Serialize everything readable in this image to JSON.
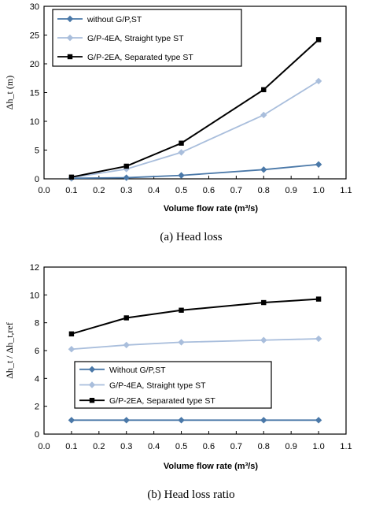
{
  "colors": {
    "without": "#4a78a8",
    "straight": "#a9bedc",
    "separated": "#000000"
  },
  "chart_data": [
    {
      "type": "line",
      "caption": "(a)  Head  loss",
      "xlabel": "Volume flow rate (m³/s)",
      "ylabel": "Δh_t (m)",
      "xlim": [
        0.0,
        1.1
      ],
      "ylim": [
        0,
        30
      ],
      "x_ticks": [
        "0.0",
        "0.1",
        "0.2",
        "0.3",
        "0.4",
        "0.5",
        "0.6",
        "0.7",
        "0.8",
        "0.9",
        "1.0",
        "1.1"
      ],
      "y_ticks": [
        "0",
        "5",
        "10",
        "15",
        "20",
        "25",
        "30"
      ],
      "x": [
        0.1,
        0.3,
        0.5,
        0.8,
        1.0
      ],
      "legend": "top-left",
      "series": [
        {
          "name": "without G/P,ST",
          "marker": "diamond",
          "values": [
            0.1,
            0.2,
            0.6,
            1.6,
            2.5
          ]
        },
        {
          "name": "G/P-4EA, Straight type ST",
          "marker": "diamond",
          "values": [
            0.2,
            1.7,
            4.6,
            11.1,
            17.0
          ]
        },
        {
          "name": "G/P-2EA, Separated type ST",
          "marker": "square",
          "values": [
            0.3,
            2.2,
            6.2,
            15.5,
            24.2
          ]
        }
      ]
    },
    {
      "type": "line",
      "caption": "(b)  Head  loss  ratio",
      "xlabel": "Volume flow rate (m³/s)",
      "ylabel": "Δh_t / Δh_t,ref",
      "xlim": [
        0.0,
        1.1
      ],
      "ylim": [
        0,
        12
      ],
      "x_ticks": [
        "0.0",
        "0.1",
        "0.2",
        "0.3",
        "0.4",
        "0.5",
        "0.6",
        "0.7",
        "0.8",
        "0.9",
        "1.0",
        "1.1"
      ],
      "y_ticks": [
        "0",
        "2",
        "4",
        "6",
        "8",
        "10",
        "12"
      ],
      "x": [
        0.1,
        0.3,
        0.5,
        0.8,
        1.0
      ],
      "legend": "bottom-left",
      "series": [
        {
          "name": "Without G/P,ST",
          "marker": "diamond",
          "values": [
            1.0,
            1.0,
            1.0,
            1.0,
            1.0
          ]
        },
        {
          "name": "G/P-4EA, Straight type ST",
          "marker": "diamond",
          "values": [
            6.1,
            6.4,
            6.6,
            6.75,
            6.85
          ]
        },
        {
          "name": "G/P-2EA, Separated type ST",
          "marker": "square",
          "values": [
            7.2,
            8.35,
            8.9,
            9.45,
            9.7
          ]
        }
      ]
    }
  ]
}
